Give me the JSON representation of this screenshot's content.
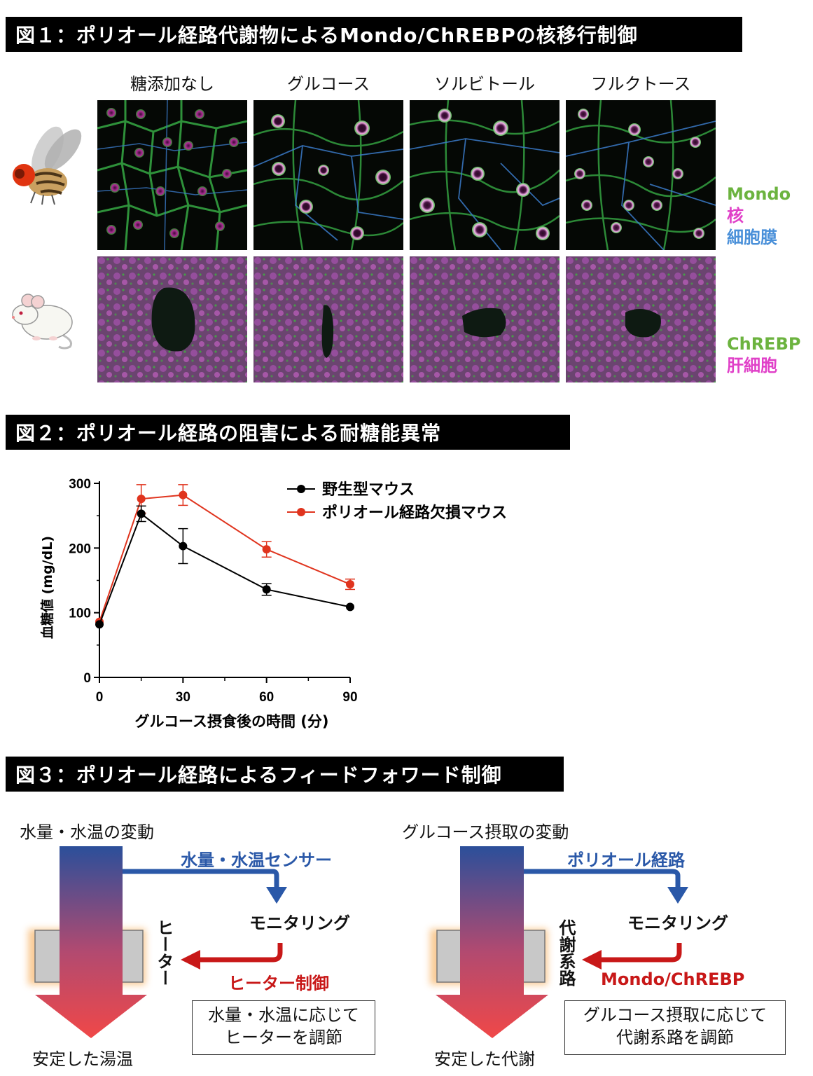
{
  "fig1": {
    "title": "図１：ポリオール経路代謝物によるMondo/ChREBPの核移行制御",
    "columns": [
      "糖添加なし",
      "グルコース",
      "ソルビトール",
      "フルクトース"
    ],
    "legend_fly": [
      "Mondo",
      "核",
      "細胞膜"
    ],
    "legend_mouse": [
      "ChREBP",
      "肝細胞"
    ],
    "colors": {
      "mondo": "#6cb33f",
      "nucleus": "#e040c8",
      "membrane": "#4a90d9"
    }
  },
  "fig2": {
    "title": "図２：ポリオール経路の阻害による耐糖能異常"
  },
  "chart_data": {
    "type": "line",
    "title": "",
    "xlabel": "グルコース摂食後の時間 (分)",
    "ylabel": "血糖値 (mg/dL)",
    "x": [
      0,
      15,
      30,
      60,
      90
    ],
    "xticks": [
      0,
      30,
      60,
      90
    ],
    "yticks": [
      0,
      100,
      200,
      300
    ],
    "xlim": [
      0,
      90
    ],
    "ylim": [
      0,
      300
    ],
    "legend_position": "top-right",
    "series": [
      {
        "name": "野生型マウス",
        "color": "#000000",
        "values": [
          82,
          253,
          203,
          136,
          109
        ],
        "errors": [
          0,
          12,
          27,
          9,
          0
        ]
      },
      {
        "name": "ポリオール経路欠損マウス",
        "color": "#e0341e",
        "values": [
          86,
          276,
          282,
          198,
          144
        ],
        "errors": [
          0,
          22,
          16,
          12,
          8
        ]
      }
    ]
  },
  "fig3": {
    "title": "図３：ポリオール経路によるフィードフォワード制御",
    "left": {
      "top_label": "水量・水温の変動",
      "sensor_label": "水量・水温センサー",
      "monitor_label": "モニタリング",
      "vertical_label": "ヒーター",
      "control_label": "ヒーター制御",
      "note_lines": [
        "水量・水温に応じて",
        "ヒーターを調節"
      ],
      "bottom_label": "安定した湯温"
    },
    "right": {
      "top_label": "グルコース摂取の変動",
      "sensor_label": "ポリオール経路",
      "monitor_label": "モニタリング",
      "vertical_label": "代謝系路",
      "control_label": "Mondo/ChREBP",
      "note_lines": [
        "グルコース摂取に応じて",
        "代謝系路を調節"
      ],
      "bottom_label": "安定した代謝"
    },
    "colors": {
      "blue": "#2a58a8",
      "red": "#c81818",
      "arrow_top": "#2b4f9a",
      "arrow_bottom": "#f04848"
    }
  }
}
